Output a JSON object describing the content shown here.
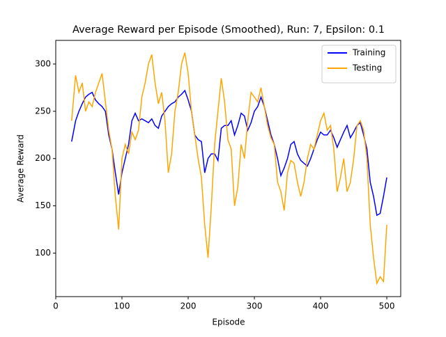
{
  "chart_data": {
    "type": "line",
    "title": "Average Reward per Episode (Smoothed), Run: 7, Epsilon: 0.1",
    "x_label": "Episode",
    "y_label": "Average Reward",
    "x": [
      24,
      30,
      35,
      40,
      45,
      50,
      55,
      60,
      65,
      70,
      75,
      80,
      85,
      90,
      95,
      100,
      105,
      110,
      115,
      120,
      125,
      130,
      135,
      140,
      145,
      150,
      155,
      160,
      165,
      170,
      175,
      180,
      185,
      190,
      195,
      200,
      205,
      210,
      215,
      220,
      225,
      230,
      235,
      240,
      245,
      250,
      255,
      260,
      265,
      270,
      275,
      280,
      285,
      290,
      295,
      300,
      305,
      310,
      315,
      320,
      325,
      330,
      335,
      340,
      345,
      350,
      355,
      360,
      365,
      370,
      375,
      380,
      385,
      390,
      395,
      400,
      405,
      410,
      415,
      420,
      425,
      430,
      435,
      440,
      445,
      450,
      455,
      460,
      465,
      470,
      475,
      480,
      485,
      490,
      495,
      500
    ],
    "series": [
      {
        "name": "Training",
        "color": "#0000ff",
        "values": [
          218,
          240,
          250,
          258,
          265,
          268,
          270,
          262,
          258,
          255,
          250,
          225,
          210,
          185,
          162,
          185,
          200,
          215,
          240,
          248,
          240,
          242,
          240,
          238,
          242,
          235,
          232,
          245,
          250,
          255,
          258,
          260,
          265,
          268,
          272,
          262,
          250,
          225,
          220,
          218,
          185,
          200,
          205,
          205,
          198,
          232,
          235,
          235,
          240,
          225,
          235,
          248,
          245,
          230,
          238,
          250,
          255,
          265,
          255,
          240,
          225,
          215,
          200,
          182,
          190,
          200,
          215,
          218,
          205,
          198,
          195,
          192,
          200,
          210,
          220,
          228,
          225,
          225,
          230,
          222,
          212,
          220,
          228,
          235,
          222,
          228,
          235,
          238,
          225,
          210,
          175,
          160,
          140,
          142,
          160,
          180
        ]
      },
      {
        "name": "Testing",
        "color": "#ffa500",
        "values": [
          240,
          288,
          270,
          280,
          250,
          260,
          255,
          270,
          280,
          290,
          260,
          230,
          210,
          160,
          125,
          200,
          215,
          205,
          228,
          220,
          230,
          265,
          280,
          300,
          310,
          280,
          258,
          270,
          240,
          185,
          205,
          250,
          270,
          300,
          312,
          290,
          250,
          225,
          200,
          180,
          130,
          95,
          150,
          215,
          250,
          285,
          260,
          220,
          210,
          150,
          170,
          215,
          200,
          240,
          270,
          265,
          260,
          275,
          255,
          235,
          222,
          215,
          175,
          165,
          145,
          185,
          198,
          195,
          175,
          160,
          175,
          200,
          215,
          210,
          225,
          240,
          248,
          230,
          235,
          210,
          165,
          180,
          200,
          165,
          175,
          200,
          235,
          240,
          230,
          200,
          130,
          95,
          68,
          75,
          70,
          130
        ]
      }
    ],
    "xlim": [
      0,
      521
    ],
    "ylim": [
      54,
      325
    ],
    "xticks": [
      0,
      100,
      200,
      300,
      400,
      500
    ],
    "yticks": [
      100,
      150,
      200,
      250,
      300
    ],
    "grid": false,
    "legend": "upper right"
  }
}
